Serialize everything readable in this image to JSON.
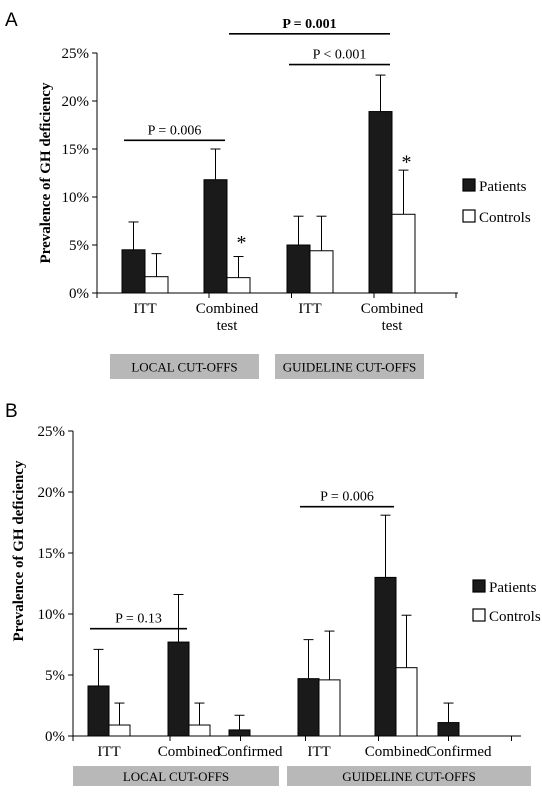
{
  "chart_data": [
    {
      "panel": "A",
      "type": "bar",
      "ylabel": "Prevalence of GH deficiency",
      "ylim": [
        0,
        25
      ],
      "yticks": [
        "0%",
        "5%",
        "10%",
        "15%",
        "20%",
        "25%"
      ],
      "categories": [
        {
          "label": [
            "ITT"
          ],
          "group": 0
        },
        {
          "label": [
            "Combined",
            "test"
          ],
          "group": 0
        },
        {
          "label": [
            "ITT"
          ],
          "group": 1
        },
        {
          "label": [
            "Combined",
            "test"
          ],
          "group": 1
        }
      ],
      "groups": [
        "LOCAL CUT-OFFS",
        "GUIDELINE CUT-OFFS"
      ],
      "series": [
        {
          "name": "Patients",
          "color": "#1a1a1a",
          "values": [
            4.5,
            11.8,
            5.0,
            18.9
          ],
          "errors": [
            2.9,
            3.2,
            3.0,
            3.8
          ]
        },
        {
          "name": "Controls",
          "color": "#ffffff",
          "values": [
            1.7,
            1.6,
            4.4,
            8.2
          ],
          "errors": [
            2.4,
            2.2,
            3.6,
            4.6
          ]
        }
      ],
      "annotations": [
        {
          "text": "P = 0.006",
          "bold": false,
          "from": [
            0,
            0
          ],
          "to": [
            1,
            0
          ],
          "y": 15.9
        },
        {
          "text": "P = 0.001",
          "bold": true,
          "from": [
            1,
            1
          ],
          "to": [
            3,
            0
          ],
          "y": 27.0
        },
        {
          "text": "P < 0.001",
          "bold": false,
          "from": [
            2,
            0
          ],
          "to": [
            3,
            0
          ],
          "y": 23.8
        },
        {
          "text": "*",
          "star": true,
          "cat": 1,
          "series": 1,
          "y": 5.6
        },
        {
          "text": "*",
          "star": true,
          "cat": 3,
          "series": 1,
          "y": 14.0
        }
      ],
      "legend": "right"
    },
    {
      "panel": "B",
      "type": "bar",
      "ylabel": "Prevalence of GH deficiency",
      "ylim": [
        0,
        25
      ],
      "yticks": [
        "0%",
        "5%",
        "10%",
        "15%",
        "20%",
        "25%"
      ],
      "categories": [
        {
          "label": [
            "ITT"
          ],
          "group": 0
        },
        {
          "label": [
            "Combined"
          ],
          "group": 0
        },
        {
          "label": [
            "Confirmed"
          ],
          "group": 0
        },
        {
          "label": [
            "ITT"
          ],
          "group": 1
        },
        {
          "label": [
            "Combined"
          ],
          "group": 1
        },
        {
          "label": [
            "Confirmed"
          ],
          "group": 1
        }
      ],
      "groups": [
        "LOCAL CUT-OFFS",
        "GUIDELINE CUT-OFFS"
      ],
      "series": [
        {
          "name": "Patients",
          "color": "#1a1a1a",
          "values": [
            4.1,
            7.7,
            0.5,
            4.7,
            13.0,
            1.1
          ],
          "errors": [
            3.0,
            3.9,
            1.2,
            3.2,
            5.1,
            1.6
          ]
        },
        {
          "name": "Controls",
          "color": "#ffffff",
          "values": [
            0.9,
            0.9,
            null,
            4.6,
            5.6,
            null
          ],
          "errors": [
            1.8,
            1.8,
            null,
            4.0,
            4.3,
            null
          ]
        }
      ],
      "annotations": [
        {
          "text": "P = 0.13",
          "bold": false,
          "from": [
            0,
            0
          ],
          "to": [
            1,
            0
          ],
          "y": 8.8
        },
        {
          "text": "P = 0.006",
          "bold": false,
          "from": [
            3,
            0
          ],
          "to": [
            4,
            0
          ],
          "y": 18.8
        }
      ],
      "legend": "right"
    }
  ]
}
